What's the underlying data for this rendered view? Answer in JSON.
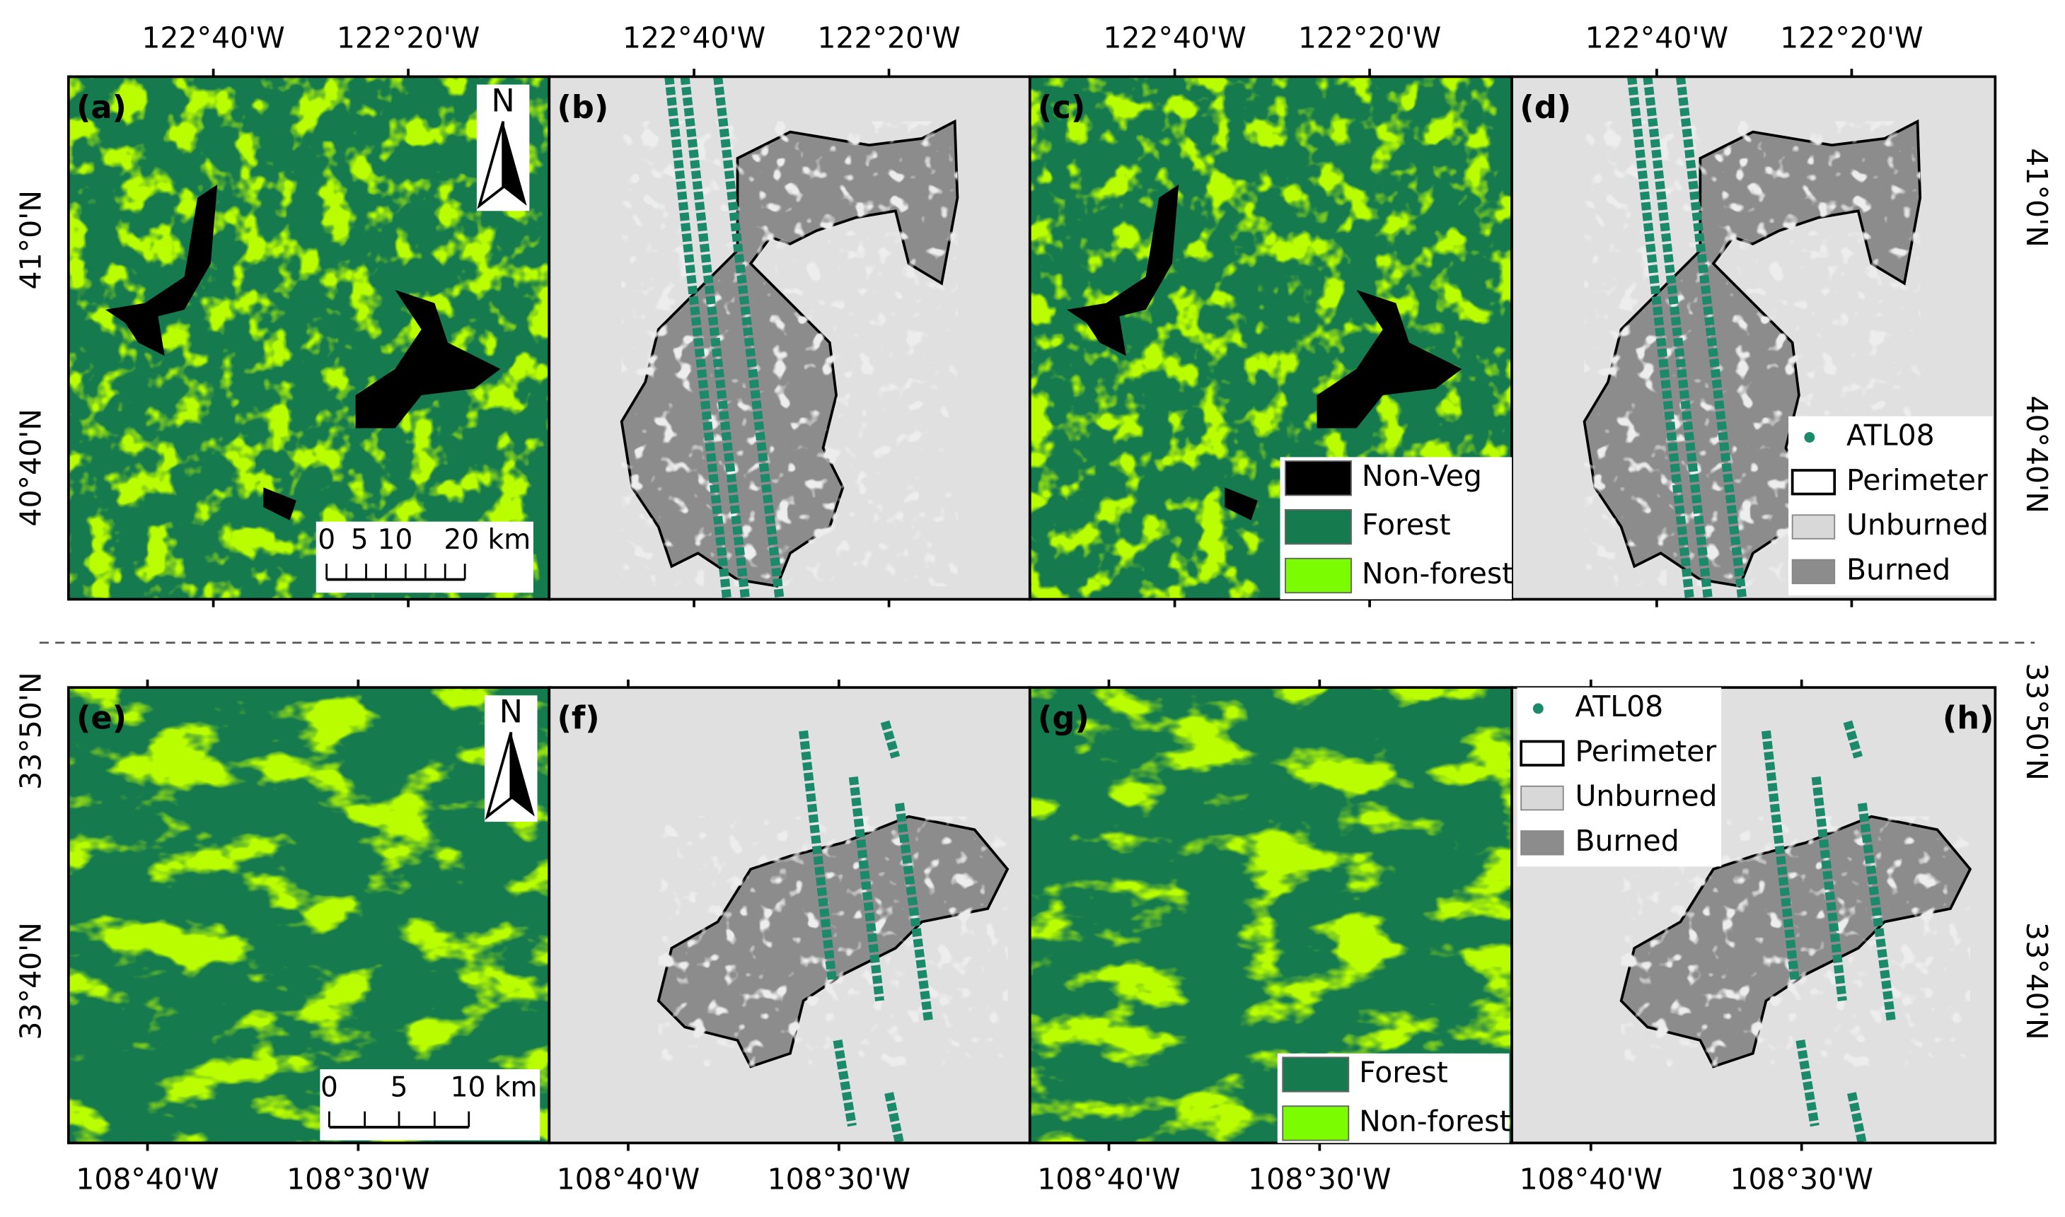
{
  "top_row": {
    "longitude_labels": [
      "122°40'W",
      "122°20'W"
    ],
    "latitude_labels_left": [
      "41°0'N",
      "40°40'N"
    ],
    "latitude_labels_right": [
      "41°0'N",
      "40°40'N"
    ],
    "panel_labels": [
      "(a)",
      "(b)",
      "(c)",
      "(d)"
    ],
    "scale_bar": [
      "0",
      "5",
      "10",
      "20 km"
    ],
    "landcover_legend": [
      "Non-Veg",
      "Forest",
      "Non-forest"
    ]
  },
  "bottom_row": {
    "longitude_labels": [
      "108°40'W",
      "108°30'W"
    ],
    "latitude_labels_left": [
      "33°50'N",
      "33°40'N"
    ],
    "latitude_labels_right": [
      "33°50'N",
      "33°40'N"
    ],
    "panel_labels": [
      "(e)",
      "(f)",
      "(g)",
      "(h)"
    ],
    "scale_bar": [
      "0",
      "5",
      "10 km"
    ],
    "landcover_legend": [
      "Forest",
      "Non-forest"
    ]
  },
  "north_label": "N",
  "fire_legend": [
    "ATL08",
    "Perimeter",
    "Unburned",
    "Burned"
  ]
}
